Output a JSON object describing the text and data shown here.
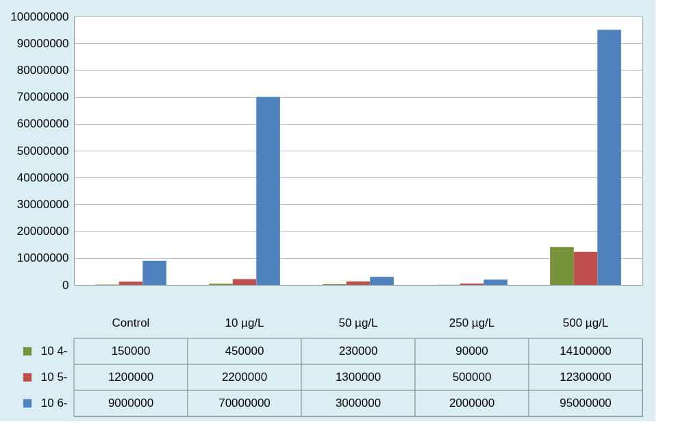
{
  "chart_data": {
    "type": "bar",
    "categories": [
      "Control",
      "10 µg/L",
      "50 µg/L",
      "250 µg/L",
      "500 µg/L"
    ],
    "series": [
      {
        "name": "10 4-",
        "color": "#77933c",
        "values": [
          150000,
          450000,
          230000,
          90000,
          14100000
        ]
      },
      {
        "name": "10 5-",
        "color": "#c0504d",
        "values": [
          1200000,
          2200000,
          1300000,
          500000,
          12300000
        ]
      },
      {
        "name": "10 6-",
        "color": "#4f81bd",
        "values": [
          9000000,
          70000000,
          3000000,
          2000000,
          95000000
        ]
      }
    ],
    "ylim": [
      0,
      100000000
    ],
    "yticks": [
      0,
      10000000,
      20000000,
      30000000,
      40000000,
      50000000,
      60000000,
      70000000,
      80000000,
      90000000,
      100000000
    ],
    "grid": "y",
    "legend": "bottom",
    "data_labels": true
  }
}
